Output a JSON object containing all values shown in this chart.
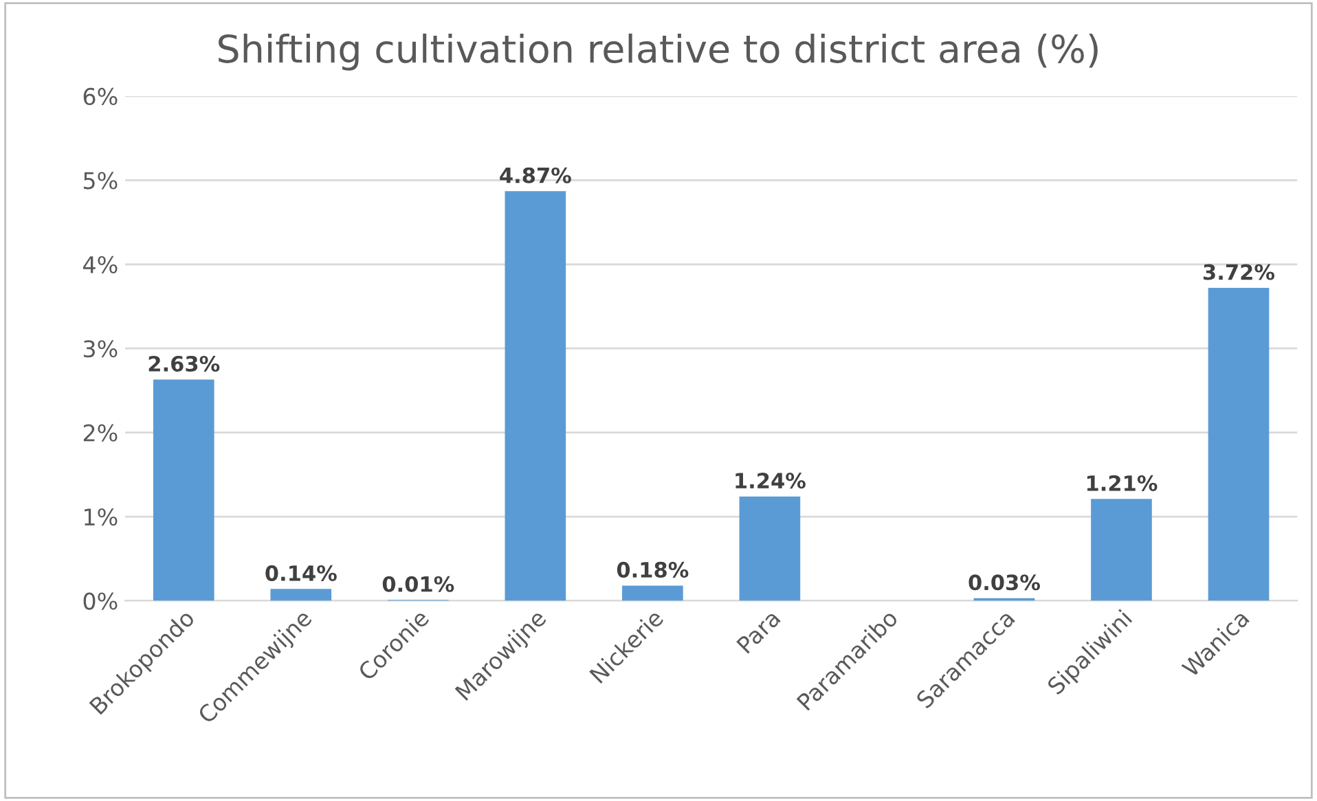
{
  "chart_data": {
    "type": "bar",
    "title": "Shifting cultivation relative to district area (%)",
    "categories": [
      "Brokopondo",
      "Commewijne",
      "Coronie",
      "Marowijne",
      "Nickerie",
      "Para",
      "Paramaribo",
      "Saramacca",
      "Sipaliwini",
      "Wanica"
    ],
    "values": [
      2.63,
      0.14,
      0.01,
      4.87,
      0.18,
      1.24,
      null,
      0.03,
      1.21,
      3.72
    ],
    "value_labels": [
      "2.63%",
      "0.14%",
      "0.01%",
      "4.87%",
      "0.18%",
      "1.24%",
      null,
      "0.03%",
      "1.21%",
      "3.72%"
    ],
    "color": "#5b9bd5",
    "ylim": [
      0,
      6
    ],
    "yticks": [
      {
        "value": 0,
        "label": "0%"
      },
      {
        "value": 1,
        "label": "1%"
      },
      {
        "value": 2,
        "label": "2%"
      },
      {
        "value": 3,
        "label": "3%"
      },
      {
        "value": 4,
        "label": "4%"
      },
      {
        "value": 5,
        "label": "5%"
      },
      {
        "value": 6,
        "label": "6%"
      }
    ],
    "grid": "y"
  }
}
